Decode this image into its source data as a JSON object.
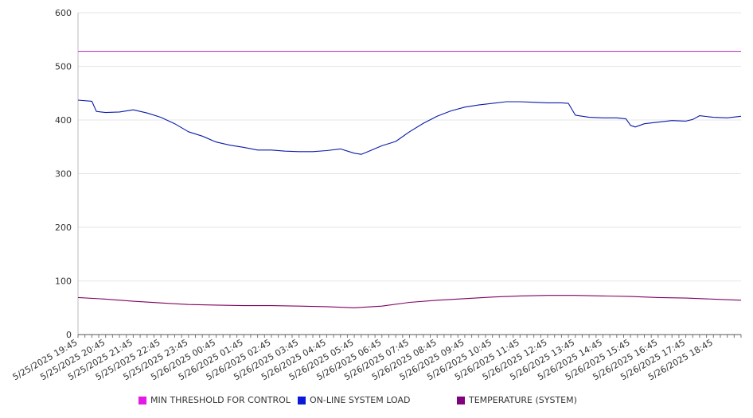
{
  "chart_data": {
    "type": "line",
    "y_ticks": [
      "0",
      "100",
      "200",
      "300",
      "400",
      "500",
      "600"
    ],
    "ylim": [
      0,
      600
    ],
    "x_start": "5/25/2025 19:45",
    "x_end": "5/26/2025 19:45",
    "x_tick_labels": [
      "5/25/2025 19:45",
      "5/25/2025 20:45",
      "5/25/2025 21:45",
      "5/25/2025 22:45",
      "5/25/2025 23:45",
      "5/26/2025 00:45",
      "5/26/2025 01:45",
      "5/26/2025 02:45",
      "5/26/2025 03:45",
      "5/26/2025 04:45",
      "5/26/2025 05:45",
      "5/26/2025 06:45",
      "5/26/2025 07:45",
      "5/26/2025 08:45",
      "5/26/2025 09:45",
      "5/26/2025 10:45",
      "5/26/2025 11:45",
      "5/26/2025 12:45",
      "5/26/2025 13:45",
      "5/26/2025 14:45",
      "5/26/2025 15:45",
      "5/26/2025 16:45",
      "5/26/2025 17:45",
      "5/26/2025 18:45"
    ],
    "grid": "horizontal",
    "legend_position": "bottom",
    "series": [
      {
        "name": "MIN THRESHOLD FOR CONTROL",
        "color": "#e31ae3",
        "line_color": "#c040c0",
        "points": [
          [
            "5/25/2025 19:45",
            528
          ],
          [
            "5/26/2025 19:45",
            528
          ]
        ]
      },
      {
        "name": "ON-LINE SYSTEM LOAD",
        "color": "#0a1ad8",
        "line_color": "#0a1aa8",
        "points": [
          [
            "5/25/2025 19:45",
            437
          ],
          [
            "5/25/2025 20:15",
            435
          ],
          [
            "5/25/2025 20:25",
            416
          ],
          [
            "5/25/2025 20:45",
            414
          ],
          [
            "5/25/2025 21:15",
            415
          ],
          [
            "5/25/2025 21:45",
            419
          ],
          [
            "5/25/2025 22:15",
            413
          ],
          [
            "5/25/2025 22:45",
            405
          ],
          [
            "5/25/2025 23:15",
            393
          ],
          [
            "5/25/2025 23:45",
            378
          ],
          [
            "5/26/2025 00:15",
            370
          ],
          [
            "5/26/2025 00:45",
            359
          ],
          [
            "5/26/2025 01:15",
            353
          ],
          [
            "5/26/2025 01:45",
            349
          ],
          [
            "5/26/2025 02:15",
            344
          ],
          [
            "5/26/2025 02:45",
            344
          ],
          [
            "5/26/2025 03:15",
            342
          ],
          [
            "5/26/2025 03:45",
            341
          ],
          [
            "5/26/2025 04:15",
            341
          ],
          [
            "5/26/2025 04:45",
            343
          ],
          [
            "5/26/2025 05:15",
            346
          ],
          [
            "5/26/2025 05:45",
            338
          ],
          [
            "5/26/2025 06:00",
            336
          ],
          [
            "5/26/2025 06:15",
            341
          ],
          [
            "5/26/2025 06:45",
            352
          ],
          [
            "5/26/2025 07:15",
            360
          ],
          [
            "5/26/2025 07:45",
            378
          ],
          [
            "5/26/2025 08:15",
            394
          ],
          [
            "5/26/2025 08:45",
            407
          ],
          [
            "5/26/2025 09:15",
            417
          ],
          [
            "5/26/2025 09:45",
            424
          ],
          [
            "5/26/2025 10:15",
            428
          ],
          [
            "5/26/2025 10:45",
            431
          ],
          [
            "5/26/2025 11:15",
            434
          ],
          [
            "5/26/2025 11:45",
            434
          ],
          [
            "5/26/2025 12:15",
            433
          ],
          [
            "5/26/2025 12:45",
            432
          ],
          [
            "5/26/2025 13:15",
            432
          ],
          [
            "5/26/2025 13:30",
            431
          ],
          [
            "5/26/2025 13:45",
            409
          ],
          [
            "5/26/2025 14:15",
            405
          ],
          [
            "5/26/2025 14:45",
            404
          ],
          [
            "5/26/2025 15:15",
            404
          ],
          [
            "5/26/2025 15:35",
            402
          ],
          [
            "5/26/2025 15:45",
            390
          ],
          [
            "5/26/2025 15:55",
            387
          ],
          [
            "5/26/2025 16:15",
            393
          ],
          [
            "5/26/2025 16:45",
            396
          ],
          [
            "5/26/2025 17:15",
            399
          ],
          [
            "5/26/2025 17:45",
            398
          ],
          [
            "5/26/2025 18:00",
            401
          ],
          [
            "5/26/2025 18:15",
            408
          ],
          [
            "5/26/2025 18:45",
            405
          ],
          [
            "5/26/2025 19:15",
            404
          ],
          [
            "5/26/2025 19:45",
            407
          ]
        ]
      },
      {
        "name": "TEMPERATURE (SYSTEM)",
        "color": "#800080",
        "line_color": "#800060",
        "points": [
          [
            "5/25/2025 19:45",
            69
          ],
          [
            "5/25/2025 20:45",
            66
          ],
          [
            "5/25/2025 21:45",
            62
          ],
          [
            "5/25/2025 22:45",
            59
          ],
          [
            "5/25/2025 23:45",
            56
          ],
          [
            "5/26/2025 00:45",
            55
          ],
          [
            "5/26/2025 01:45",
            54
          ],
          [
            "5/26/2025 02:45",
            54
          ],
          [
            "5/26/2025 03:45",
            53
          ],
          [
            "5/26/2025 04:45",
            52
          ],
          [
            "5/26/2025 05:45",
            50
          ],
          [
            "5/26/2025 06:45",
            53
          ],
          [
            "5/26/2025 07:45",
            60
          ],
          [
            "5/26/2025 08:45",
            64
          ],
          [
            "5/26/2025 09:45",
            67
          ],
          [
            "5/26/2025 10:45",
            70
          ],
          [
            "5/26/2025 11:45",
            72
          ],
          [
            "5/26/2025 12:45",
            73
          ],
          [
            "5/26/2025 13:45",
            73
          ],
          [
            "5/26/2025 14:45",
            72
          ],
          [
            "5/26/2025 15:45",
            71
          ],
          [
            "5/26/2025 16:45",
            69
          ],
          [
            "5/26/2025 17:45",
            68
          ],
          [
            "5/26/2025 18:45",
            66
          ],
          [
            "5/26/2025 19:45",
            64
          ]
        ]
      }
    ]
  }
}
